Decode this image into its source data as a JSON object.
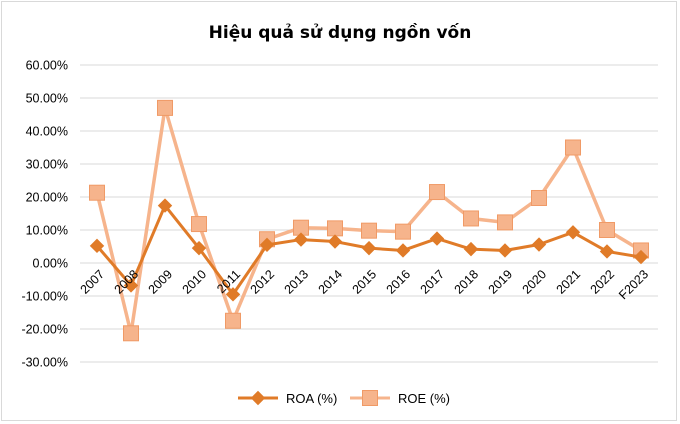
{
  "chart_data": {
    "type": "line",
    "title": "Hiệu quả sử dụng ngồn vốn",
    "categories": [
      "2007",
      "2008",
      "2009",
      "2010",
      "2011",
      "2012",
      "2013",
      "2014",
      "2015",
      "2016",
      "2017",
      "2018",
      "2019",
      "2020",
      "2021",
      "2022",
      "F2023"
    ],
    "series": [
      {
        "name": "ROA (%)",
        "color": "#e07b28",
        "marker": "diamond",
        "values": [
          0.052,
          -0.068,
          0.174,
          0.045,
          -0.095,
          0.055,
          0.071,
          0.065,
          0.045,
          0.038,
          0.074,
          0.042,
          0.038,
          0.056,
          0.093,
          0.035,
          0.018
        ]
      },
      {
        "name": "ROE (%)",
        "color": "#f6b48c",
        "marker": "square",
        "values": [
          0.213,
          -0.213,
          0.47,
          0.118,
          -0.175,
          0.072,
          0.107,
          0.105,
          0.098,
          0.095,
          0.215,
          0.135,
          0.123,
          0.197,
          0.35,
          0.1,
          0.038
        ]
      }
    ],
    "ylim": [
      -0.3,
      0.6
    ],
    "yticks": [
      "60.00%",
      "50.00%",
      "40.00%",
      "30.00%",
      "20.00%",
      "10.00%",
      "0.00%",
      "-10.00%",
      "-20.00%",
      "-30.00%"
    ],
    "ytick_values": [
      0.6,
      0.5,
      0.4,
      0.3,
      0.2,
      0.1,
      0.0,
      -0.1,
      -0.2,
      -0.3
    ],
    "grid": true,
    "legend_position": "bottom"
  }
}
